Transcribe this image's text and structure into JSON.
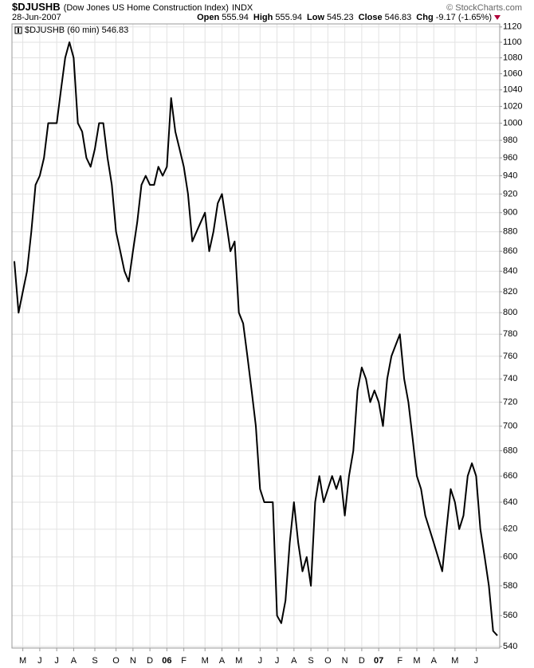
{
  "chart_data": {
    "type": "line",
    "title": "$DJUSHB",
    "subtitle": "(Dow Jones US Home Construction Index)",
    "exchange": "INDX",
    "date": "28-Jun-2007",
    "source": "© StockCharts.com",
    "quote": [
      {
        "label": "Open",
        "value": "555.94"
      },
      {
        "label": "High",
        "value": "555.94"
      },
      {
        "label": "Low",
        "value": "545.23"
      },
      {
        "label": "Close",
        "value": "546.83"
      },
      {
        "label": "Chg",
        "value": "-9.17 (-1.65%)"
      }
    ],
    "log_scale": true,
    "grid": true,
    "legend": "upper left",
    "categories": [
      null,
      null,
      "M",
      null,
      null,
      null,
      "J",
      null,
      null,
      null,
      "J",
      null,
      null,
      null,
      "A",
      null,
      null,
      null,
      null,
      "S",
      null,
      null,
      null,
      null,
      "O",
      null,
      null,
      null,
      "N",
      null,
      null,
      null,
      "D",
      null,
      null,
      null,
      "06",
      null,
      null,
      null,
      "F",
      null,
      null,
      null,
      null,
      "M",
      null,
      null,
      null,
      "A",
      null,
      null,
      null,
      "M",
      null,
      null,
      null,
      null,
      "J",
      null,
      null,
      null,
      "J",
      null,
      null,
      null,
      "A",
      null,
      null,
      null,
      "S",
      null,
      null,
      null,
      "O",
      null,
      null,
      null,
      "N",
      null,
      null,
      null,
      "D",
      null,
      null,
      null,
      "07",
      null,
      null,
      null,
      null,
      "F",
      null,
      null,
      null,
      "M",
      null,
      null,
      null,
      "A",
      null,
      null,
      null,
      null,
      "M",
      null,
      null,
      null,
      null,
      "J",
      null,
      null,
      null,
      null,
      null
    ],
    "series": [
      {
        "name": "$DJUSHB (60 min) 546.83",
        "color": "#000000",
        "values": [
          850,
          800,
          820,
          840,
          880,
          930,
          940,
          960,
          1000,
          1000,
          1000,
          1040,
          1080,
          1100,
          1080,
          1000,
          990,
          960,
          950,
          970,
          1000,
          1000,
          960,
          930,
          880,
          860,
          840,
          830,
          860,
          890,
          930,
          940,
          930,
          930,
          950,
          940,
          950,
          1030,
          990,
          970,
          950,
          920,
          870,
          880,
          890,
          900,
          860,
          880,
          910,
          920,
          890,
          860,
          870,
          800,
          790,
          760,
          730,
          700,
          650,
          640,
          640,
          640,
          560,
          555,
          570,
          610,
          640,
          610,
          590,
          600,
          580,
          640,
          660,
          640,
          650,
          660,
          650,
          660,
          630,
          660,
          680,
          730,
          750,
          740,
          720,
          730,
          720,
          700,
          740,
          760,
          770,
          780,
          740,
          720,
          690,
          660,
          650,
          630,
          620,
          610,
          600,
          590,
          620,
          650,
          640,
          620,
          630,
          660,
          670,
          660,
          620,
          600,
          580,
          550,
          547
        ]
      }
    ],
    "ylim": [
      539,
      1124
    ],
    "yticks": [
      540,
      560,
      580,
      600,
      620,
      640,
      660,
      680,
      700,
      720,
      740,
      760,
      780,
      800,
      820,
      840,
      860,
      880,
      900,
      920,
      940,
      960,
      980,
      1000,
      1020,
      1040,
      1060,
      1080,
      1100,
      1120
    ]
  }
}
